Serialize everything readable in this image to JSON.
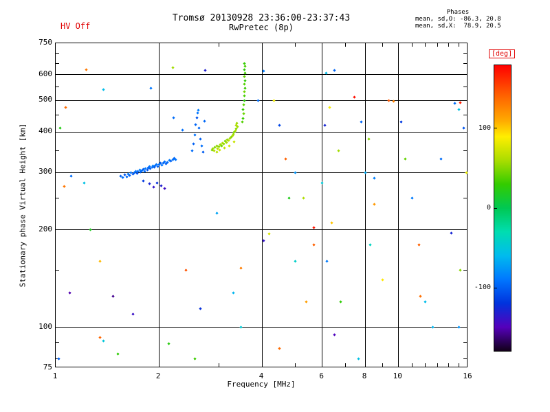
{
  "header": {
    "hv_status": "HV Off",
    "title": "Tromsø 20130928 23:36:00-23:37:43",
    "subtitle": "RwPretec (8p)",
    "phases_label": "Phases",
    "phases_mean_o": "mean, sd,O: -86.3, 20.8",
    "phases_mean_x": "mean, sd,X:  78.9, 20.5"
  },
  "axes": {
    "x_label": "Frequency [MHz]",
    "y_label": "Stationary phase Virtual Height [km]",
    "x_ticks": [
      1,
      2,
      4,
      6,
      8,
      10,
      16
    ],
    "x_minor_ticks": [
      3,
      5,
      7,
      9,
      11,
      12,
      13,
      14,
      15
    ],
    "x_gridlines": [
      2,
      4,
      6,
      8,
      10
    ],
    "y_ticks": [
      75,
      100,
      200,
      300,
      400,
      500,
      600,
      750
    ],
    "y_minor_ticks": [
      80,
      90,
      150,
      250,
      350,
      450,
      550,
      650,
      700
    ],
    "y_gridlines": [
      100,
      200,
      300,
      400,
      500,
      600
    ],
    "x_range": [
      1,
      16
    ],
    "y_range": [
      75,
      750
    ]
  },
  "colorbar": {
    "label": "[deg]",
    "label_color": "#e00000",
    "ticks": [
      100,
      0,
      -100
    ],
    "range": [
      -180,
      180
    ],
    "stops": [
      [
        180,
        "#ff0000"
      ],
      [
        140,
        "#ff6600"
      ],
      [
        110,
        "#ffaa00"
      ],
      [
        90,
        "#ffee00"
      ],
      [
        60,
        "#aadd00"
      ],
      [
        30,
        "#33cc00"
      ],
      [
        0,
        "#00c853"
      ],
      [
        -30,
        "#00ddb0"
      ],
      [
        -60,
        "#00bbee"
      ],
      [
        -90,
        "#0077ff"
      ],
      [
        -120,
        "#0033dd"
      ],
      [
        -150,
        "#5500bb"
      ],
      [
        -180,
        "#120019"
      ]
    ]
  },
  "chart_data": {
    "type": "scatter",
    "title": "Tromsø 20130928 23:36:00-23:37:43",
    "subtitle": "RwPretec (8p)",
    "xlabel": "Frequency [MHz]",
    "ylabel": "Stationary phase Virtual Height [km]",
    "x_scale": "log",
    "y_scale": "log",
    "xlim": [
      1,
      16
    ],
    "ylim": [
      75,
      750
    ],
    "color_label": "[deg]",
    "color_range": [
      -180,
      180
    ],
    "legend_position": "right-colorbar",
    "grid": true,
    "points_format": [
      "frequency_mhz",
      "virtual_height_km",
      "phase_deg"
    ],
    "points": [
      [
        1.55,
        293,
        -100
      ],
      [
        1.57,
        290,
        -92
      ],
      [
        1.59,
        295,
        -104
      ],
      [
        1.61,
        291,
        -96
      ],
      [
        1.63,
        297,
        -88
      ],
      [
        1.64,
        294,
        -101
      ],
      [
        1.66,
        299,
        -93
      ],
      [
        1.68,
        296,
        -105
      ],
      [
        1.7,
        300,
        -97
      ],
      [
        1.71,
        303,
        -90
      ],
      [
        1.73,
        298,
        -108
      ],
      [
        1.74,
        302,
        -95
      ],
      [
        1.76,
        305,
        -86
      ],
      [
        1.77,
        301,
        -100
      ],
      [
        1.79,
        304,
        -94
      ],
      [
        1.8,
        307,
        -102
      ],
      [
        1.82,
        303,
        -96
      ],
      [
        1.83,
        309,
        -89
      ],
      [
        1.85,
        306,
        -105
      ],
      [
        1.86,
        310,
        -98
      ],
      [
        1.88,
        313,
        -92
      ],
      [
        1.89,
        308,
        -100
      ],
      [
        1.91,
        312,
        -95
      ],
      [
        1.92,
        315,
        -87
      ],
      [
        1.94,
        311,
        -103
      ],
      [
        1.95,
        314,
        -96
      ],
      [
        1.97,
        318,
        -91
      ],
      [
        1.99,
        313,
        -99
      ],
      [
        2.0,
        317,
        -94
      ],
      [
        2.02,
        320,
        -100
      ],
      [
        2.04,
        316,
        -90
      ],
      [
        2.06,
        321,
        -97
      ],
      [
        2.08,
        324,
        -93
      ],
      [
        2.1,
        319,
        -101
      ],
      [
        2.12,
        323,
        -95
      ],
      [
        2.15,
        327,
        -89
      ],
      [
        2.17,
        325,
        -98
      ],
      [
        2.2,
        329,
        -93
      ],
      [
        2.22,
        332,
        -96
      ],
      [
        2.24,
        328,
        -91
      ],
      [
        1.88,
        277,
        -128
      ],
      [
        1.93,
        271,
        -138
      ],
      [
        1.98,
        279,
        -122
      ],
      [
        2.03,
        273,
        -132
      ],
      [
        2.08,
        268,
        -142
      ],
      [
        1.8,
        282,
        -118
      ],
      [
        2.5,
        350,
        -95
      ],
      [
        2.53,
        368,
        -100
      ],
      [
        2.55,
        391,
        -92
      ],
      [
        2.56,
        421,
        -98
      ],
      [
        2.58,
        442,
        -106
      ],
      [
        2.6,
        458,
        -90
      ],
      [
        2.62,
        412,
        -96
      ],
      [
        2.64,
        381,
        -100
      ],
      [
        2.67,
        362,
        -94
      ],
      [
        2.7,
        347,
        -102
      ],
      [
        2.72,
        432,
        -97
      ],
      [
        2.61,
        466,
        -88
      ],
      [
        2.21,
        443,
        -95
      ],
      [
        2.35,
        405,
        -93
      ],
      [
        2.86,
        352,
        48
      ],
      [
        2.88,
        356,
        56
      ],
      [
        2.9,
        350,
        62
      ],
      [
        2.92,
        358,
        50
      ],
      [
        2.95,
        362,
        54
      ],
      [
        2.97,
        355,
        66
      ],
      [
        3.0,
        360,
        52
      ],
      [
        3.02,
        366,
        58
      ],
      [
        3.05,
        363,
        46
      ],
      [
        3.07,
        370,
        62
      ],
      [
        3.1,
        368,
        55
      ],
      [
        3.12,
        374,
        49
      ],
      [
        3.15,
        372,
        60
      ],
      [
        3.17,
        378,
        53
      ],
      [
        3.2,
        376,
        66
      ],
      [
        3.22,
        382,
        58
      ],
      [
        3.25,
        386,
        51
      ],
      [
        3.28,
        390,
        63
      ],
      [
        3.3,
        394,
        56
      ],
      [
        3.32,
        400,
        49
      ],
      [
        3.35,
        404,
        61
      ],
      [
        3.37,
        410,
        53
      ],
      [
        3.4,
        415,
        58
      ],
      [
        3.31,
        373,
        70
      ],
      [
        3.21,
        363,
        74
      ],
      [
        3.11,
        357,
        68
      ],
      [
        3.01,
        351,
        72
      ],
      [
        2.96,
        347,
        66
      ],
      [
        3.36,
        420,
        63
      ],
      [
        3.38,
        426,
        57
      ],
      [
        3.52,
        470,
        30
      ],
      [
        3.54,
        486,
        40
      ],
      [
        3.55,
        500,
        26
      ],
      [
        3.56,
        516,
        35
      ],
      [
        3.55,
        531,
        45
      ],
      [
        3.57,
        546,
        31
      ],
      [
        3.56,
        561,
        38
      ],
      [
        3.58,
        576,
        28
      ],
      [
        3.55,
        592,
        42
      ],
      [
        3.57,
        607,
        34
      ],
      [
        3.56,
        622,
        26
      ],
      [
        3.58,
        637,
        36
      ],
      [
        3.54,
        455,
        44
      ],
      [
        3.53,
        441,
        32
      ],
      [
        3.56,
        650,
        30
      ],
      [
        3.5,
        430,
        38
      ],
      [
        1.23,
        622,
        132
      ],
      [
        1.9,
        545,
        -90
      ],
      [
        1.38,
        540,
        -58
      ],
      [
        1.07,
        476,
        138
      ],
      [
        1.03,
        412,
        22
      ],
      [
        1.06,
        272,
        133
      ],
      [
        1.21,
        278,
        -55
      ],
      [
        1.11,
        292,
        -95
      ],
      [
        1.26,
        200,
        18
      ],
      [
        1.35,
        160,
        105
      ],
      [
        1.1,
        128,
        -152
      ],
      [
        1.47,
        125,
        -158
      ],
      [
        1.38,
        91,
        -50
      ],
      [
        1.52,
        83,
        28
      ],
      [
        1.68,
        110,
        -140
      ],
      [
        2.14,
        89,
        24
      ],
      [
        2.2,
        630,
        58
      ],
      [
        2.73,
        620,
        -132
      ],
      [
        2.64,
        114,
        -122
      ],
      [
        2.55,
        80,
        32
      ],
      [
        2.4,
        150,
        148
      ],
      [
        3.48,
        152,
        130
      ],
      [
        3.3,
        128,
        -62
      ],
      [
        3.48,
        100,
        -48
      ],
      [
        3.9,
        500,
        -95
      ],
      [
        4.05,
        615,
        -88
      ],
      [
        4.33,
        500,
        84
      ],
      [
        4.5,
        420,
        -112
      ],
      [
        4.7,
        331,
        142
      ],
      [
        4.19,
        194,
        76
      ],
      [
        4.05,
        185,
        -138
      ],
      [
        4.5,
        86,
        138
      ],
      [
        5.0,
        300,
        -78
      ],
      [
        5.3,
        250,
        62
      ],
      [
        5.66,
        203,
        172
      ],
      [
        5.66,
        180,
        142
      ],
      [
        5.0,
        160,
        -42
      ],
      [
        6.15,
        608,
        -58
      ],
      [
        6.5,
        620,
        -98
      ],
      [
        6.3,
        476,
        86
      ],
      [
        6.1,
        420,
        -128
      ],
      [
        6.7,
        350,
        58
      ],
      [
        6.0,
        279,
        -48
      ],
      [
        6.4,
        210,
        102
      ],
      [
        6.2,
        160,
        -88
      ],
      [
        6.8,
        120,
        28
      ],
      [
        6.5,
        95,
        -148
      ],
      [
        7.46,
        513,
        174
      ],
      [
        7.8,
        430,
        -98
      ],
      [
        7.64,
        80,
        -55
      ],
      [
        8.2,
        380,
        52
      ],
      [
        8.0,
        300,
        -68
      ],
      [
        8.5,
        288,
        -86
      ],
      [
        8.5,
        240,
        118
      ],
      [
        8.3,
        180,
        -38
      ],
      [
        9.0,
        140,
        92
      ],
      [
        9.4,
        500,
        146
      ],
      [
        9.7,
        498,
        128
      ],
      [
        10.2,
        430,
        -118
      ],
      [
        10.5,
        330,
        42
      ],
      [
        11.0,
        250,
        -88
      ],
      [
        11.6,
        125,
        136
      ],
      [
        11.5,
        180,
        142
      ],
      [
        12.0,
        120,
        -58
      ],
      [
        12.6,
        100,
        -62
      ],
      [
        13.3,
        331,
        -95
      ],
      [
        14.3,
        195,
        -128
      ],
      [
        14.6,
        490,
        -95
      ],
      [
        15.2,
        492,
        170
      ],
      [
        15.0,
        470,
        -55
      ],
      [
        15.5,
        412,
        -105
      ],
      [
        15.8,
        300,
        82
      ],
      [
        15.0,
        100,
        -78
      ],
      [
        15.2,
        150,
        52
      ],
      [
        1.02,
        80,
        -100
      ],
      [
        1.35,
        93,
        140
      ],
      [
        2.95,
        225,
        -70
      ],
      [
        4.8,
        250,
        20
      ],
      [
        5.4,
        120,
        115
      ]
    ]
  }
}
